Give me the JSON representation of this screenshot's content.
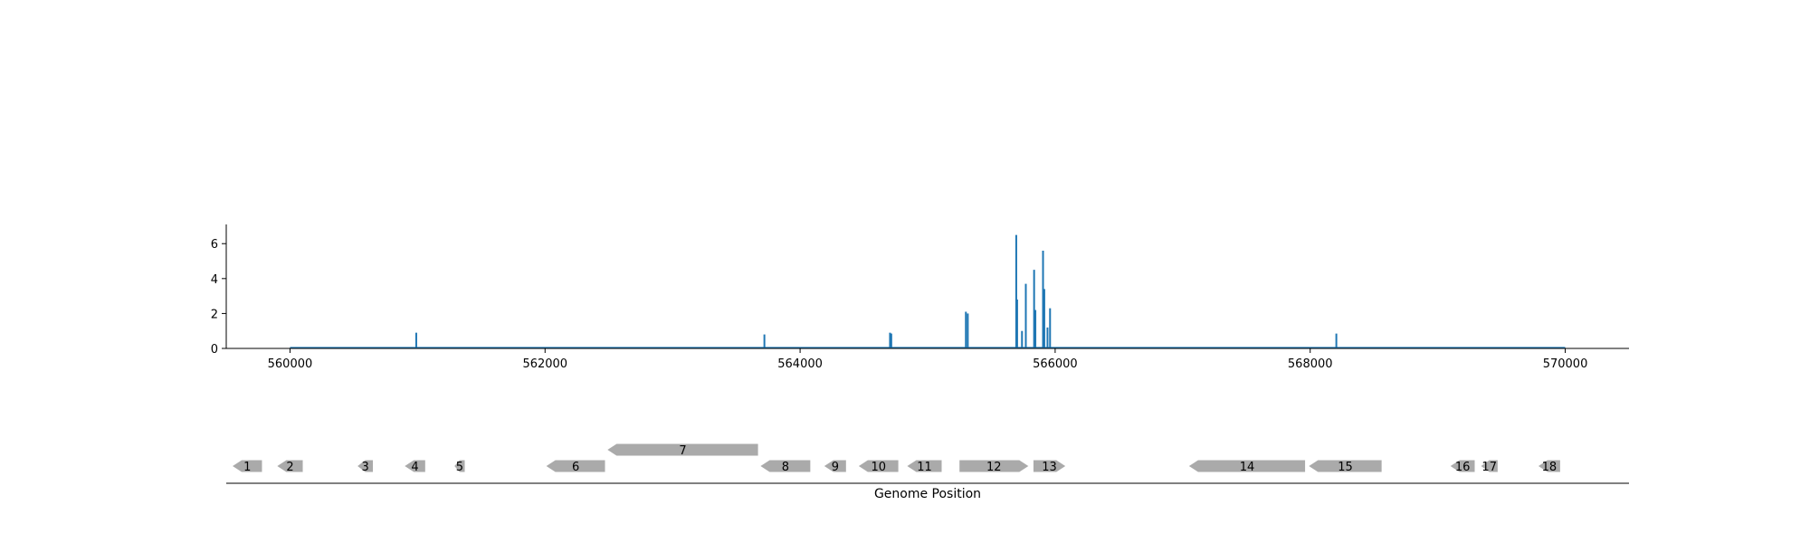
{
  "chart_data": [
    {
      "type": "bar",
      "title": "",
      "xlabel": "",
      "ylabel": "",
      "xlim": [
        559500,
        570500
      ],
      "ylim": [
        0,
        7.1
      ],
      "grid": false,
      "series_color": "#1f77b4",
      "x_ticks": [
        560000,
        562000,
        564000,
        566000,
        568000,
        570000
      ],
      "x_tick_labels": [
        "560000",
        "562000",
        "564000",
        "566000",
        "568000",
        "570000"
      ],
      "y_ticks": [
        0,
        2,
        4,
        6
      ],
      "y_tick_labels": [
        "0",
        "2",
        "4",
        "6"
      ],
      "series": [
        {
          "points": [
            {
              "x": 560990,
              "y": 0.9
            },
            {
              "x": 563720,
              "y": 0.8
            },
            {
              "x": 564705,
              "y": 0.9
            },
            {
              "x": 564715,
              "y": 0.85
            },
            {
              "x": 565300,
              "y": 2.1
            },
            {
              "x": 565315,
              "y": 2.0
            },
            {
              "x": 565695,
              "y": 6.5
            },
            {
              "x": 565702,
              "y": 2.8
            },
            {
              "x": 565740,
              "y": 1.0
            },
            {
              "x": 565770,
              "y": 3.7
            },
            {
              "x": 565835,
              "y": 4.5
            },
            {
              "x": 565845,
              "y": 2.2
            },
            {
              "x": 565905,
              "y": 5.6
            },
            {
              "x": 565915,
              "y": 3.4
            },
            {
              "x": 565940,
              "y": 1.2
            },
            {
              "x": 565960,
              "y": 2.3
            },
            {
              "x": 568205,
              "y": 0.85
            }
          ]
        }
      ]
    },
    {
      "type": "gene-map",
      "xlabel": "Genome Position",
      "gene_color": "#aaaaaa",
      "genes": [
        {
          "label": "1",
          "start": 559550,
          "end": 559780,
          "strand": "-",
          "row": 0
        },
        {
          "label": "2",
          "start": 559900,
          "end": 560100,
          "strand": "-",
          "row": 0
        },
        {
          "label": "3",
          "start": 560530,
          "end": 560650,
          "strand": "-",
          "row": 0
        },
        {
          "label": "4",
          "start": 560900,
          "end": 561060,
          "strand": "-",
          "row": 0
        },
        {
          "label": "5",
          "start": 561290,
          "end": 561370,
          "strand": "-",
          "row": 0
        },
        {
          "label": "6",
          "start": 562010,
          "end": 562470,
          "strand": "-",
          "row": 0
        },
        {
          "label": "7",
          "start": 562490,
          "end": 563670,
          "strand": "-",
          "row": 1
        },
        {
          "label": "8",
          "start": 563690,
          "end": 564080,
          "strand": "-",
          "row": 0
        },
        {
          "label": "9",
          "start": 564190,
          "end": 564360,
          "strand": "-",
          "row": 0
        },
        {
          "label": "10",
          "start": 564460,
          "end": 564770,
          "strand": "-",
          "row": 0
        },
        {
          "label": "11",
          "start": 564840,
          "end": 565110,
          "strand": "-",
          "row": 0
        },
        {
          "label": "12",
          "start": 565250,
          "end": 565790,
          "strand": "+",
          "row": 0
        },
        {
          "label": "13",
          "start": 565830,
          "end": 566080,
          "strand": "+",
          "row": 0
        },
        {
          "label": "14",
          "start": 567050,
          "end": 567960,
          "strand": "-",
          "row": 0
        },
        {
          "label": "15",
          "start": 567990,
          "end": 568560,
          "strand": "-",
          "row": 0
        },
        {
          "label": "16",
          "start": 569100,
          "end": 569290,
          "strand": "-",
          "row": 0
        },
        {
          "label": "17",
          "start": 569340,
          "end": 569470,
          "strand": "-",
          "row": 0
        },
        {
          "label": "18",
          "start": 569790,
          "end": 569960,
          "strand": "-",
          "row": 0
        }
      ]
    }
  ]
}
